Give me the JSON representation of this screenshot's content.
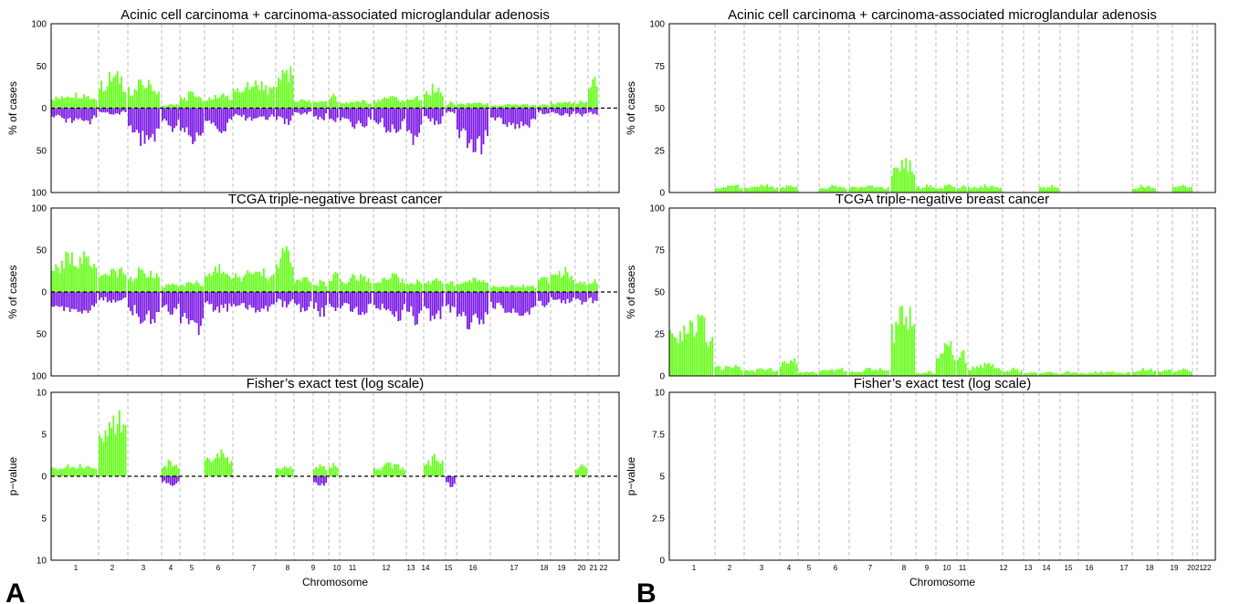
{
  "figure": {
    "panel_letters": [
      "A",
      "B"
    ],
    "x_axis_label": "Chromosome",
    "colors": {
      "gain": "#66ff1a",
      "loss": "#7a19e6",
      "grid": "#bdbdbd",
      "frame": "#000000"
    }
  },
  "chart_data": [
    {
      "id": "A1",
      "panel": "A",
      "type": "bar",
      "title": "Acinic cell carcinoma + carcinoma-associated microglandular adenosis",
      "ylabel": "% of cases",
      "yticks_top": [
        "100",
        "50",
        "0"
      ],
      "yticks_bottom": [
        "50",
        "100"
      ],
      "ylim": [
        -100,
        100
      ],
      "grid": "vertical dashed chromosome boundaries",
      "chromosomes": [
        "1",
        "2",
        "3",
        "4",
        "5",
        "6",
        "7",
        "8",
        "9",
        "10",
        "11",
        "12",
        "13",
        "14",
        "15",
        "16",
        "17",
        "18",
        "19",
        "20",
        "21",
        "22"
      ],
      "gain": [
        [
          1,
          20
        ],
        [
          2,
          45
        ],
        [
          3,
          35
        ],
        [
          4,
          5
        ],
        [
          5,
          20
        ],
        [
          6,
          18
        ],
        [
          7,
          35
        ],
        [
          8,
          55
        ],
        [
          9,
          12
        ],
        [
          10,
          12
        ],
        [
          11,
          18
        ],
        [
          12,
          10
        ],
        [
          13,
          15
        ],
        [
          14,
          15
        ],
        [
          15,
          30
        ],
        [
          16,
          8
        ],
        [
          17,
          8
        ],
        [
          18,
          5
        ],
        [
          19,
          5
        ],
        [
          20,
          10
        ],
        [
          21,
          10
        ],
        [
          22,
          38
        ]
      ],
      "loss": [
        [
          1,
          20
        ],
        [
          2,
          8
        ],
        [
          3,
          45
        ],
        [
          4,
          30
        ],
        [
          5,
          45
        ],
        [
          6,
          30
        ],
        [
          7,
          15
        ],
        [
          8,
          20
        ],
        [
          9,
          8
        ],
        [
          10,
          15
        ],
        [
          11,
          20
        ],
        [
          12,
          25
        ],
        [
          13,
          30
        ],
        [
          14,
          45
        ],
        [
          15,
          20
        ],
        [
          16,
          8
        ],
        [
          17,
          55
        ],
        [
          18,
          25
        ],
        [
          19,
          8
        ],
        [
          20,
          10
        ],
        [
          21,
          10
        ],
        [
          22,
          10
        ]
      ]
    },
    {
      "id": "A2",
      "panel": "A",
      "type": "bar",
      "title": "TCGA triple-negative breast cancer",
      "ylabel": "% of cases",
      "yticks_top": [
        "100",
        "50",
        "0"
      ],
      "yticks_bottom": [
        "50",
        "100"
      ],
      "ylim": [
        -100,
        100
      ],
      "grid": "vertical dashed chromosome boundaries",
      "chromosomes": [
        "1",
        "2",
        "3",
        "4",
        "5",
        "6",
        "7",
        "8",
        "9",
        "10",
        "11",
        "12",
        "13",
        "14",
        "15",
        "16",
        "17",
        "18",
        "19",
        "20",
        "21",
        "22"
      ],
      "gain": [
        [
          1,
          50
        ],
        [
          2,
          30
        ],
        [
          3,
          30
        ],
        [
          4,
          12
        ],
        [
          5,
          15
        ],
        [
          6,
          35
        ],
        [
          7,
          30
        ],
        [
          8,
          60
        ],
        [
          9,
          20
        ],
        [
          10,
          15
        ],
        [
          11,
          30
        ],
        [
          12,
          22
        ],
        [
          13,
          25
        ],
        [
          14,
          15
        ],
        [
          15,
          20
        ],
        [
          16,
          15
        ],
        [
          17,
          20
        ],
        [
          18,
          10
        ],
        [
          19,
          25
        ],
        [
          20,
          30
        ],
        [
          21,
          15
        ],
        [
          22,
          18
        ]
      ],
      "loss": [
        [
          1,
          30
        ],
        [
          2,
          15
        ],
        [
          3,
          40
        ],
        [
          4,
          30
        ],
        [
          5,
          55
        ],
        [
          6,
          25
        ],
        [
          7,
          25
        ],
        [
          8,
          20
        ],
        [
          9,
          25
        ],
        [
          10,
          30
        ],
        [
          11,
          30
        ],
        [
          12,
          30
        ],
        [
          13,
          35
        ],
        [
          14,
          40
        ],
        [
          15,
          35
        ],
        [
          16,
          25
        ],
        [
          17,
          45
        ],
        [
          18,
          30
        ],
        [
          19,
          20
        ],
        [
          20,
          15
        ],
        [
          21,
          15
        ],
        [
          22,
          15
        ]
      ]
    },
    {
      "id": "A3",
      "panel": "A",
      "type": "bar",
      "title": "Fisher’s exact test (log scale)",
      "ylabel": "p−value",
      "yticks_top": [
        "10",
        "5",
        "0"
      ],
      "yticks_bottom": [
        "5",
        "10"
      ],
      "ylim": [
        -10,
        10
      ],
      "grid": "vertical dashed chromosome boundaries",
      "chromosomes": [
        "1",
        "2",
        "3",
        "4",
        "5",
        "6",
        "7",
        "8",
        "9",
        "10",
        "11",
        "12",
        "13",
        "14",
        "15",
        "16",
        "17",
        "18",
        "19",
        "20",
        "21",
        "22"
      ],
      "gain": [
        [
          1,
          1.5
        ],
        [
          2,
          8.5
        ],
        [
          4,
          2
        ],
        [
          6,
          3.3
        ],
        [
          8,
          1.7
        ],
        [
          10,
          1.5
        ],
        [
          11,
          1.7
        ],
        [
          13,
          1.7
        ],
        [
          15,
          2.7
        ],
        [
          21,
          1.5
        ]
      ],
      "loss": [
        [
          4,
          1.3
        ],
        [
          10,
          1.4
        ],
        [
          16,
          1.4
        ]
      ]
    },
    {
      "id": "B1",
      "panel": "B",
      "type": "bar",
      "title": "Acinic cell carcinoma + carcinoma-associated microglandular adenosis",
      "ylabel": "% of cases",
      "yticks": [
        "100",
        "75",
        "50",
        "25",
        "0"
      ],
      "ylim": [
        0,
        100
      ],
      "grid": "vertical dashed chromosome boundaries",
      "chromosomes": [
        "1",
        "2",
        "3",
        "4",
        "5",
        "6",
        "7",
        "8",
        "9",
        "10",
        "11",
        "12",
        "13",
        "14",
        "15",
        "16",
        "17",
        "18",
        "19",
        "2021",
        "22"
      ],
      "gain": [
        [
          2,
          5
        ],
        [
          3,
          5
        ],
        [
          4,
          5
        ],
        [
          6,
          5
        ],
        [
          7,
          5
        ],
        [
          8,
          22
        ],
        [
          9,
          5
        ],
        [
          10,
          5
        ],
        [
          11,
          5
        ],
        [
          12,
          5
        ],
        [
          15,
          5
        ],
        [
          18,
          5
        ],
        [
          20,
          5
        ]
      ]
    },
    {
      "id": "B2",
      "panel": "B",
      "type": "bar",
      "title": "TCGA triple-negative breast cancer",
      "ylabel": "% of cases",
      "yticks": [
        "100",
        "75",
        "50",
        "25",
        "0"
      ],
      "ylim": [
        0,
        100
      ],
      "grid": "vertical dashed chromosome boundaries",
      "chromosomes": [
        "1",
        "2",
        "3",
        "4",
        "5",
        "6",
        "7",
        "8",
        "9",
        "10",
        "11",
        "12",
        "13",
        "14",
        "15",
        "16",
        "17",
        "18",
        "19",
        "2021",
        "22"
      ],
      "gain": [
        [
          1,
          37
        ],
        [
          2,
          8
        ],
        [
          3,
          5
        ],
        [
          4,
          13
        ],
        [
          5,
          3
        ],
        [
          6,
          5
        ],
        [
          7,
          5
        ],
        [
          8,
          45
        ],
        [
          9,
          3
        ],
        [
          10,
          21
        ],
        [
          11,
          16
        ],
        [
          12,
          8
        ],
        [
          13,
          5
        ],
        [
          14,
          3
        ],
        [
          15,
          3
        ],
        [
          16,
          3
        ],
        [
          17,
          3
        ],
        [
          18,
          5
        ],
        [
          19,
          5
        ],
        [
          20,
          5
        ]
      ]
    },
    {
      "id": "B3",
      "panel": "B",
      "type": "bar",
      "title": "Fisher’s exact test (log scale)",
      "ylabel": "p−value",
      "yticks": [
        "10",
        "7.5",
        "5",
        "2.5",
        "0"
      ],
      "ylim": [
        0,
        10
      ],
      "grid": "vertical dashed chromosome boundaries",
      "chromosomes": [
        "1",
        "2",
        "3",
        "4",
        "5",
        "6",
        "7",
        "8",
        "9",
        "10",
        "11",
        "12",
        "13",
        "14",
        "15",
        "16",
        "17",
        "18",
        "19",
        "2021",
        "22"
      ],
      "gain": []
    }
  ]
}
